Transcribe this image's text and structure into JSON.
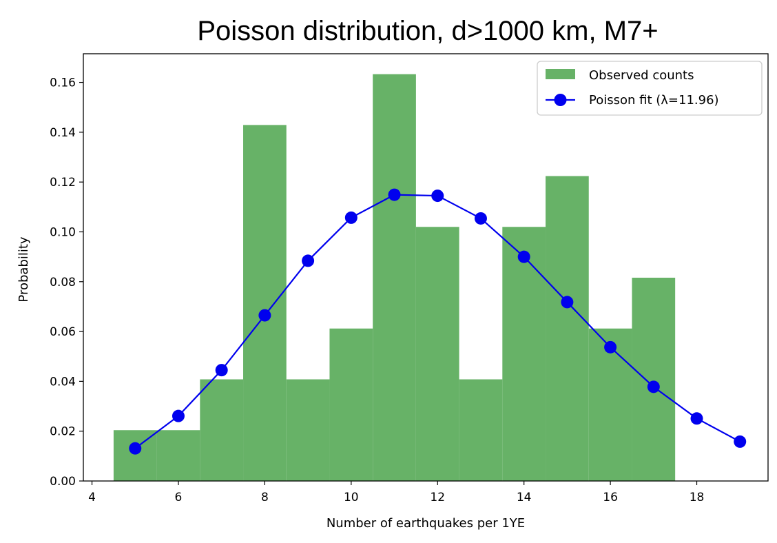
{
  "chart_data": {
    "type": "bar",
    "title": "Poisson distribution, d>1000 km, M7+",
    "xlabel": "Number of earthquakes per 1YE",
    "ylabel": "Probability",
    "xlim": [
      3.8,
      19.65
    ],
    "ylim": [
      0,
      0.1715
    ],
    "xticks": [
      4,
      6,
      8,
      10,
      12,
      14,
      16,
      18
    ],
    "yticks": [
      0.0,
      0.02,
      0.04,
      0.06,
      0.08,
      0.1,
      0.12,
      0.14,
      0.16
    ],
    "ytick_labels": [
      "0.00",
      "0.02",
      "0.04",
      "0.06",
      "0.08",
      "0.10",
      "0.12",
      "0.14",
      "0.16"
    ],
    "grid": false,
    "legend_position": "top-right",
    "histogram": {
      "name": "Observed counts",
      "color": "#67b267",
      "bin_edges": [
        4.5,
        5.5,
        6.5,
        7.5,
        8.5,
        9.5,
        10.5,
        11.5,
        12.5,
        13.5,
        14.5,
        15.5,
        16.5,
        17.5
      ],
      "values": [
        0.0204,
        0.0204,
        0.0408,
        0.1429,
        0.0408,
        0.0612,
        0.1633,
        0.102,
        0.0408,
        0.102,
        0.1224,
        0.0612,
        0.0816
      ]
    },
    "series": [
      {
        "name": "Poisson fit (λ=11.96)",
        "color": "#0000ee",
        "x": [
          5,
          6,
          7,
          8,
          9,
          10,
          11,
          12,
          13,
          14,
          15,
          16,
          17,
          18,
          19
        ],
        "values": [
          0.0131,
          0.0261,
          0.0445,
          0.0665,
          0.0884,
          0.1057,
          0.1149,
          0.1145,
          0.1054,
          0.09,
          0.0718,
          0.0537,
          0.0378,
          0.0251,
          0.0158
        ]
      }
    ]
  }
}
